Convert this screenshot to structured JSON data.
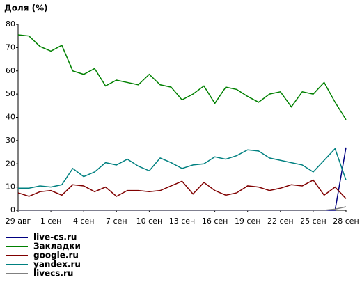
{
  "chart_data": {
    "type": "line",
    "title": "Доля (%)",
    "categories": [
      "29 авг",
      null,
      null,
      "1 сен",
      null,
      null,
      "4 сен",
      null,
      null,
      "7 сен",
      null,
      null,
      "10 сен",
      null,
      null,
      "13 сен",
      null,
      null,
      "16 сен",
      null,
      null,
      "19 сен",
      null,
      null,
      "22 сен",
      null,
      null,
      "25 сен",
      null,
      null,
      "28 сен"
    ],
    "ylim": [
      0,
      80
    ],
    "yticks": [
      0,
      10,
      20,
      30,
      40,
      50,
      60,
      70,
      80
    ],
    "grid": false,
    "legend_position": "bottom",
    "series": [
      {
        "name": "live-cs.ru",
        "color": "#000080",
        "values": [
          0,
          0,
          0,
          0,
          0,
          0,
          0,
          0,
          0,
          0,
          0,
          0,
          0,
          0,
          0,
          0,
          0,
          0,
          0,
          0,
          0,
          0,
          0,
          0,
          0,
          0,
          0,
          0,
          0,
          0,
          27
        ]
      },
      {
        "name": "Закладки",
        "color": "#008000",
        "values": [
          75.5,
          75,
          70.5,
          68.5,
          71,
          60,
          58.5,
          61,
          53.5,
          56,
          55,
          54,
          58.5,
          54,
          53,
          47.5,
          50,
          53.5,
          46,
          53,
          52,
          49,
          46.5,
          50,
          51,
          44.5,
          51,
          50,
          55,
          46.5,
          39
        ]
      },
      {
        "name": "google.ru",
        "color": "#800000",
        "values": [
          7.5,
          6,
          8,
          8.5,
          6.5,
          11,
          10.5,
          8,
          10,
          6,
          8.5,
          8.5,
          8,
          8.5,
          10.5,
          12.5,
          7,
          12,
          8.5,
          6.5,
          7.5,
          10.5,
          10,
          8.5,
          9.5,
          11,
          10.5,
          13,
          6.5,
          10,
          5
        ]
      },
      {
        "name": "yandex.ru",
        "color": "#008080",
        "values": [
          9.5,
          9.5,
          10.5,
          10,
          11,
          18,
          14.5,
          16.5,
          20.5,
          19.5,
          22,
          19,
          17,
          22.5,
          20.5,
          18,
          19.5,
          20,
          23,
          22,
          23.5,
          26,
          25.5,
          22.5,
          21.5,
          20.5,
          19.5,
          16.5,
          21.5,
          26.5,
          13
        ]
      },
      {
        "name": "livecs.ru",
        "color": "#808080",
        "values": [
          0,
          0,
          0,
          0,
          0,
          0,
          0,
          0,
          0,
          0,
          0,
          0,
          0,
          0,
          0,
          0,
          0,
          0,
          0,
          0,
          0,
          0,
          0,
          0,
          0,
          0,
          0,
          0,
          0,
          0.5,
          1.5
        ]
      }
    ]
  }
}
